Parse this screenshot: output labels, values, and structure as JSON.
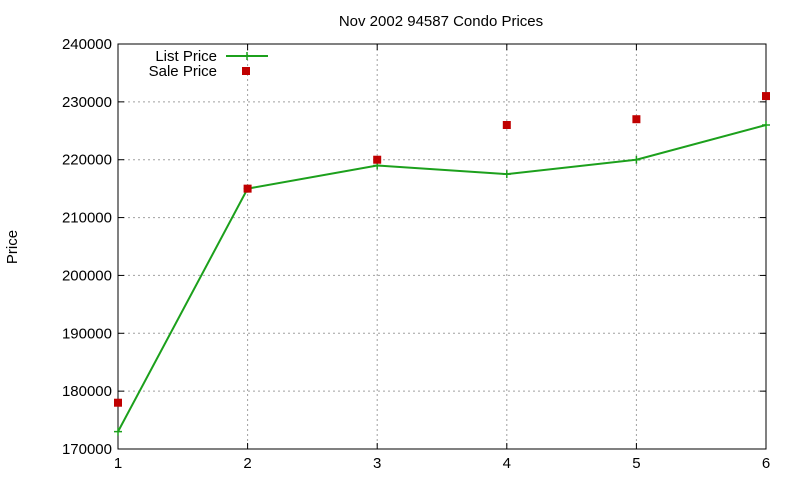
{
  "chart_data": {
    "type": "line",
    "title": "Nov 2002 94587 Condo Prices",
    "xlabel": "",
    "ylabel": "Price",
    "x": [
      1,
      2,
      3,
      4,
      5,
      6
    ],
    "xlim": [
      1,
      6
    ],
    "ylim": [
      170000,
      240000
    ],
    "xticks": [
      "1",
      "2",
      "3",
      "4",
      "5",
      "6"
    ],
    "yticks": [
      "170000",
      "180000",
      "190000",
      "200000",
      "210000",
      "220000",
      "230000",
      "240000"
    ],
    "grid": true,
    "legend_position": "top-left",
    "series": [
      {
        "name": "List Price",
        "style": "line-with-plus-markers",
        "color": "#1ca01c",
        "values": [
          173000,
          215000,
          219000,
          217500,
          220000,
          226000
        ]
      },
      {
        "name": "Sale Price",
        "style": "square-markers",
        "color": "#c00000",
        "values": [
          178000,
          null,
          220000,
          226000,
          227000,
          231000
        ],
        "extra_points": [
          {
            "x": 2,
            "y": 215000
          }
        ]
      }
    ]
  }
}
